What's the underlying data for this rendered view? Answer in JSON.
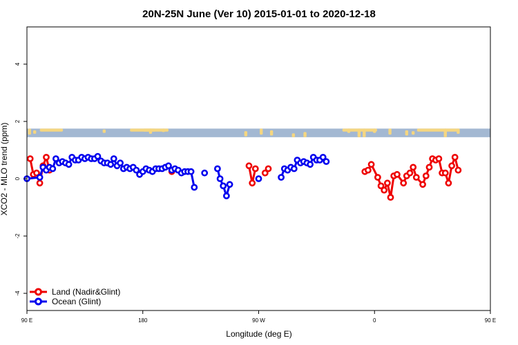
{
  "chart_data": {
    "type": "line",
    "title": "20N-25N June (Ver 10)   2015-01-01 to 2020-12-18",
    "xlabel": "Longitude (deg E)",
    "ylabel": "XCO2 - MLO trend (ppm)",
    "xlim": [
      90,
      450
    ],
    "ylim": [
      -4.6,
      5.3
    ],
    "x_ticks": [
      {
        "value": 90,
        "label": "90 E"
      },
      {
        "value": 180,
        "label": "180"
      },
      {
        "value": 270,
        "label": "90 W"
      },
      {
        "value": 360,
        "label": "0"
      },
      {
        "value": 450,
        "label": "90 E"
      }
    ],
    "y_ticks": [
      {
        "value": -4,
        "label": "-4"
      },
      {
        "value": -2,
        "label": "-2"
      },
      {
        "value": 0,
        "label": "0"
      },
      {
        "value": 2,
        "label": "2"
      },
      {
        "value": 4,
        "label": "4"
      }
    ],
    "map_band": {
      "y_min": 1.45,
      "y_max": 1.75,
      "ocean_color": "#a3b8d2",
      "land_color": "#f5d680"
    },
    "legend_position": "bottom-left",
    "series": [
      {
        "name": "Land (Nadir&Glint)",
        "color": "#ee0000",
        "segments": [
          [
            [
              92.5,
              0.7
            ],
            [
              95,
              0.15
            ],
            [
              97.5,
              0.2
            ],
            [
              100,
              -0.15
            ],
            [
              102.5,
              0.45
            ],
            [
              105,
              0.75
            ],
            [
              107.5,
              0.3
            ]
          ],
          [
            [
              202.5,
              0.25
            ]
          ],
          [
            [
              262.5,
              0.45
            ],
            [
              265,
              -0.15
            ],
            [
              267.5,
              0.35
            ]
          ],
          [
            [
              275,
              0.2
            ],
            [
              277.5,
              0.35
            ]
          ],
          [
            [
              352.5,
              0.25
            ],
            [
              355,
              0.3
            ],
            [
              357.5,
              0.5
            ],
            [
              362.5,
              0.05
            ],
            [
              365,
              -0.25
            ],
            [
              367.5,
              -0.4
            ],
            [
              370,
              -0.15
            ],
            [
              372.5,
              -0.65
            ],
            [
              375,
              0.1
            ],
            [
              377.5,
              0.15
            ],
            [
              382.5,
              -0.15
            ],
            [
              385,
              0.1
            ],
            [
              387.5,
              0.2
            ],
            [
              390,
              0.4
            ],
            [
              392.5,
              0.05
            ],
            [
              397.5,
              -0.2
            ],
            [
              400,
              0.1
            ],
            [
              402.5,
              0.4
            ],
            [
              405,
              0.7
            ],
            [
              407.5,
              0.65
            ],
            [
              410,
              0.7
            ],
            [
              412.5,
              0.2
            ],
            [
              415,
              0.2
            ],
            [
              417.5,
              -0.15
            ],
            [
              420,
              0.45
            ],
            [
              422.5,
              0.75
            ],
            [
              425,
              0.3
            ]
          ]
        ]
      },
      {
        "name": "Ocean (Glint)",
        "color": "#0000ee",
        "segments": [
          [
            [
              90,
              0.0
            ],
            [
              100,
              0.05
            ],
            [
              102.5,
              0.4
            ],
            [
              105,
              0.3
            ],
            [
              107.5,
              0.4
            ],
            [
              110,
              0.35
            ],
            [
              112.5,
              0.7
            ],
            [
              115,
              0.55
            ],
            [
              117.5,
              0.6
            ],
            [
              120,
              0.55
            ],
            [
              122.5,
              0.5
            ],
            [
              125,
              0.75
            ],
            [
              127.5,
              0.65
            ],
            [
              130,
              0.65
            ],
            [
              132.5,
              0.75
            ],
            [
              135,
              0.7
            ],
            [
              137.5,
              0.75
            ],
            [
              140,
              0.7
            ],
            [
              142.5,
              0.7
            ],
            [
              145,
              0.78
            ],
            [
              147.5,
              0.62
            ],
            [
              150,
              0.55
            ],
            [
              152.5,
              0.55
            ],
            [
              155,
              0.5
            ],
            [
              157.5,
              0.7
            ],
            [
              160,
              0.45
            ],
            [
              162.5,
              0.55
            ],
            [
              165,
              0.35
            ],
            [
              167.5,
              0.4
            ],
            [
              170,
              0.35
            ],
            [
              172.5,
              0.4
            ],
            [
              175,
              0.3
            ],
            [
              177.5,
              0.15
            ],
            [
              180,
              0.25
            ],
            [
              182.5,
              0.35
            ],
            [
              185,
              0.3
            ],
            [
              187.5,
              0.25
            ],
            [
              190,
              0.35
            ],
            [
              192.5,
              0.35
            ],
            [
              195,
              0.35
            ],
            [
              197.5,
              0.4
            ],
            [
              200,
              0.45
            ],
            [
              202.5,
              0.3
            ],
            [
              205,
              0.35
            ],
            [
              207.5,
              0.3
            ],
            [
              210,
              0.2
            ],
            [
              212.5,
              0.25
            ],
            [
              215,
              0.25
            ],
            [
              217.5,
              0.25
            ],
            [
              220,
              -0.3
            ]
          ],
          [
            [
              228,
              0.2
            ]
          ],
          [
            [
              238,
              0.35
            ],
            [
              240,
              0.0
            ],
            [
              242.5,
              -0.25
            ],
            [
              245,
              -0.6
            ],
            [
              247.5,
              -0.2
            ]
          ],
          [
            [
              270,
              0.0
            ]
          ],
          [
            [
              287.5,
              0.05
            ],
            [
              290,
              0.35
            ],
            [
              292.5,
              0.3
            ],
            [
              295,
              0.4
            ],
            [
              297.5,
              0.35
            ],
            [
              300,
              0.65
            ],
            [
              302.5,
              0.55
            ],
            [
              305,
              0.6
            ],
            [
              307.5,
              0.55
            ],
            [
              310,
              0.5
            ],
            [
              312.5,
              0.75
            ],
            [
              315,
              0.65
            ],
            [
              317.5,
              0.65
            ],
            [
              320,
              0.75
            ],
            [
              322.5,
              0.6
            ]
          ]
        ]
      }
    ]
  }
}
